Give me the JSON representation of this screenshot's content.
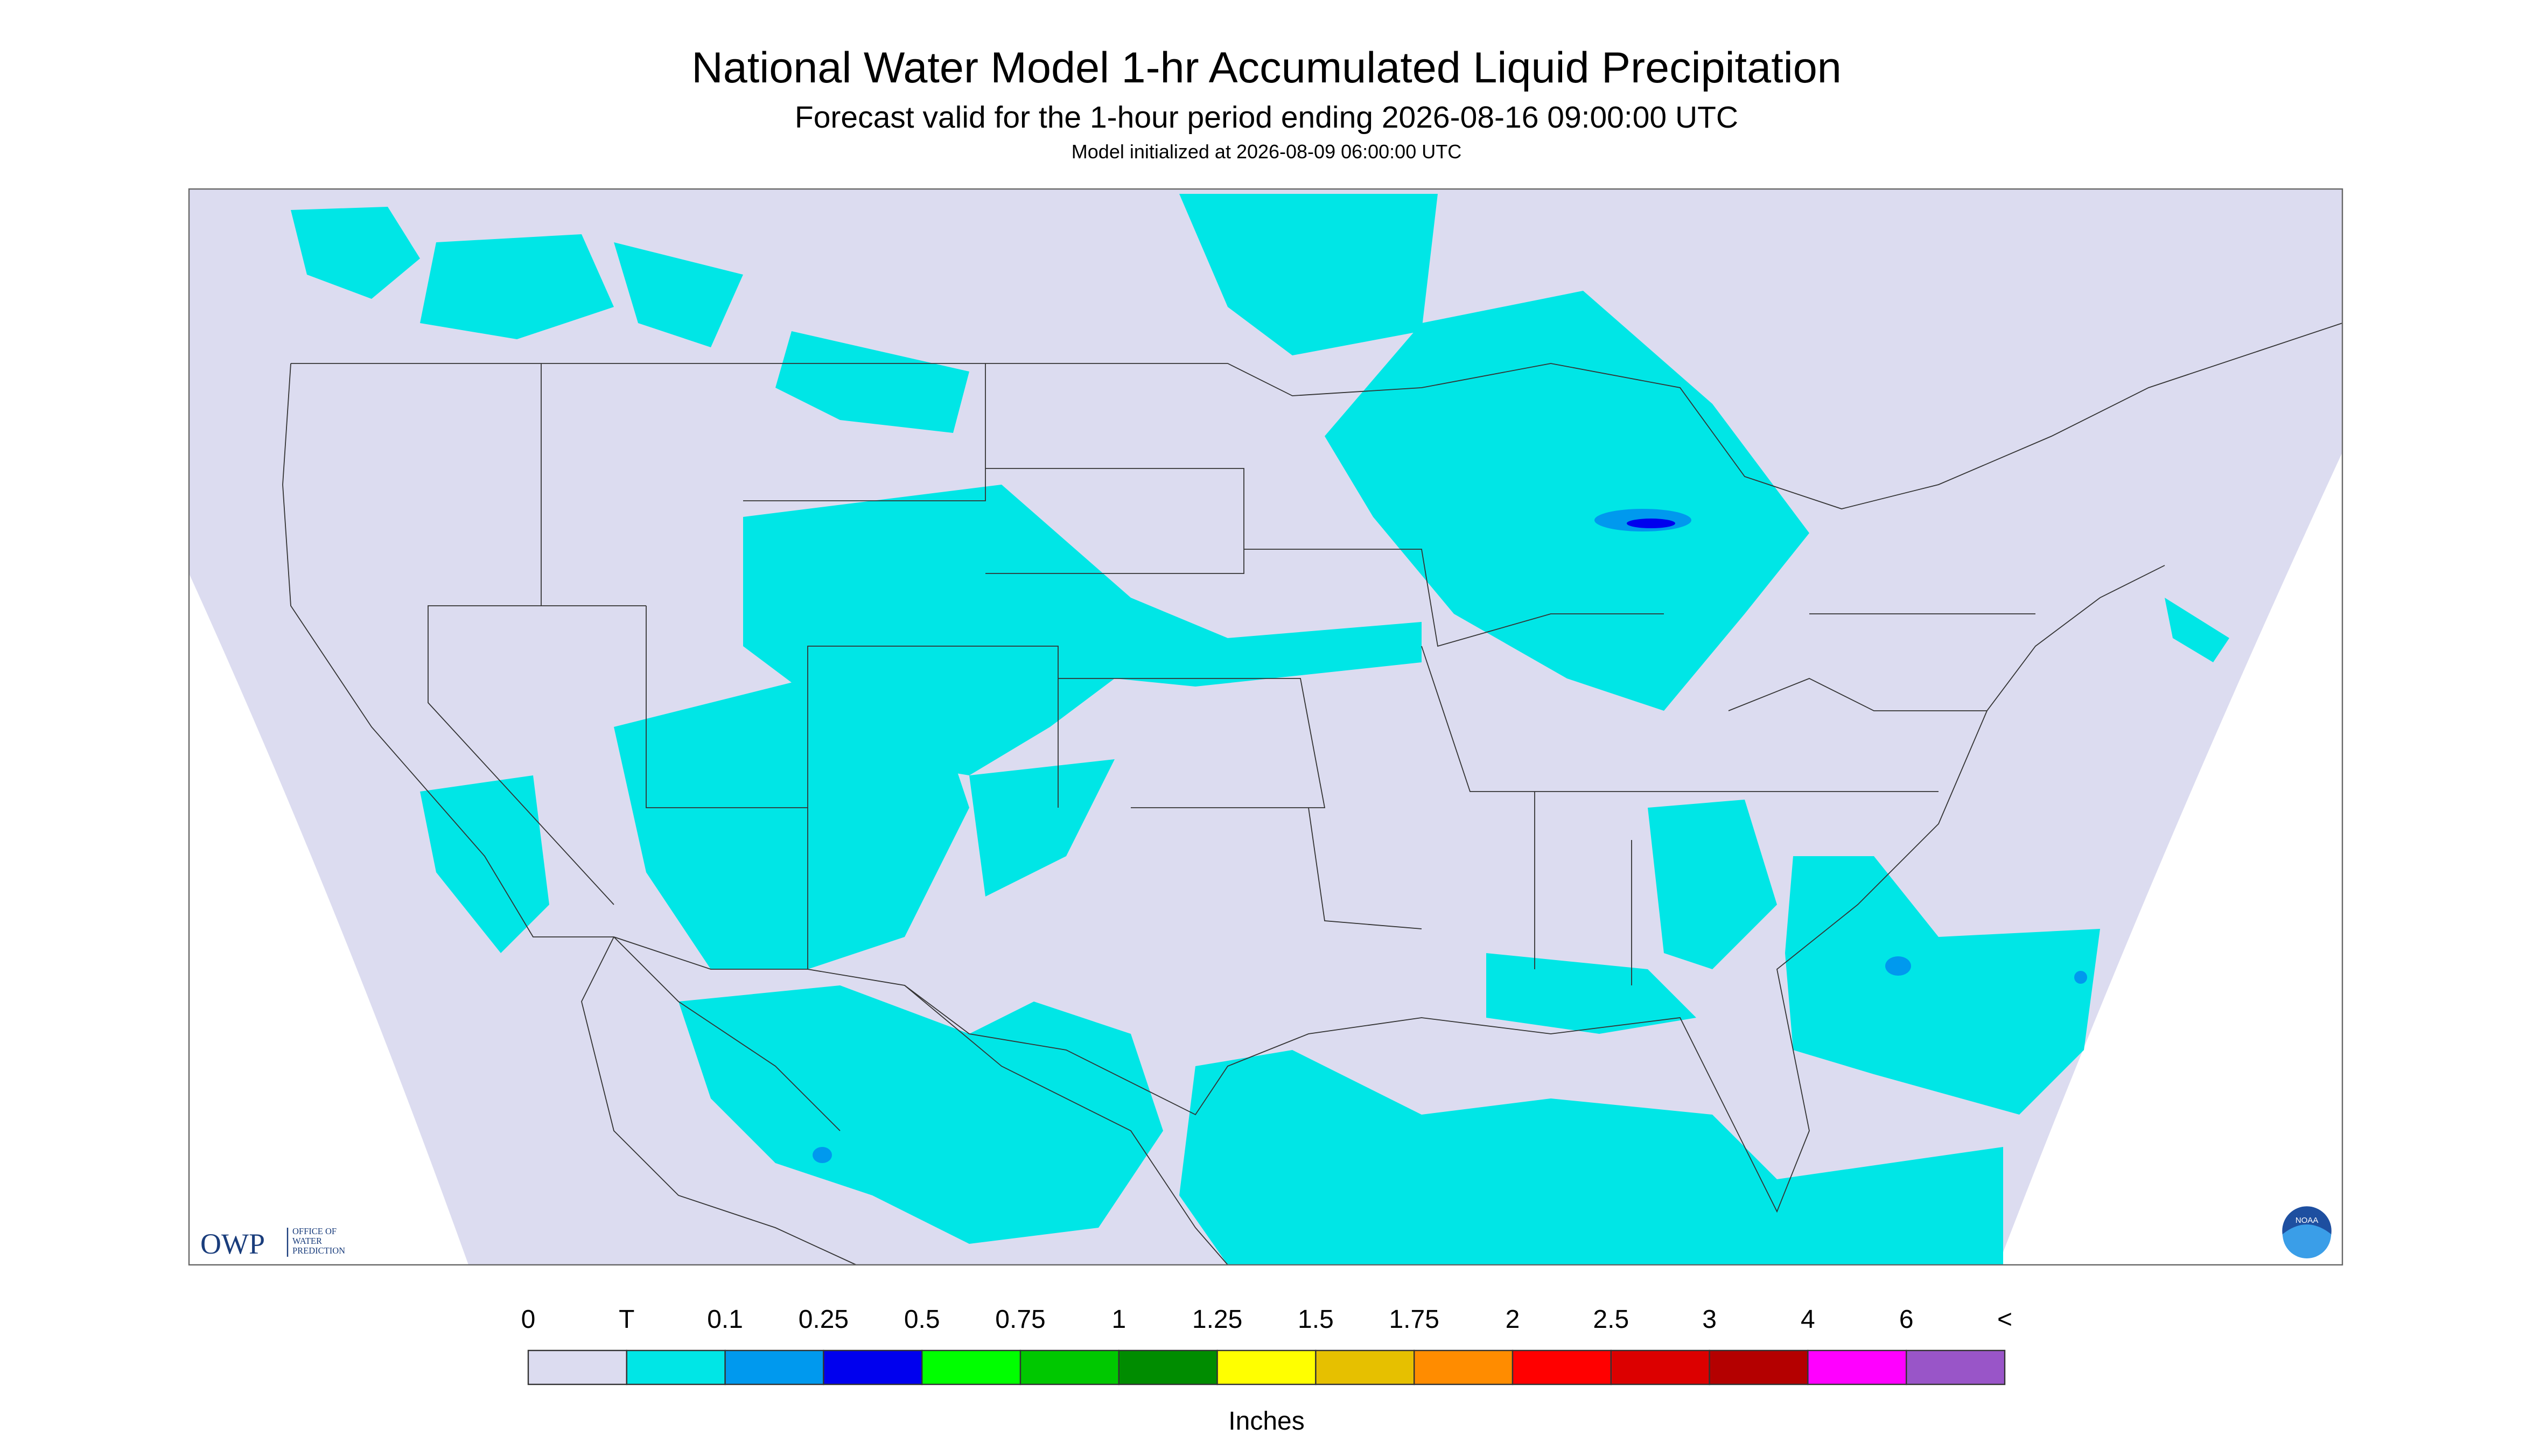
{
  "header": {
    "title": "National Water Model 1-hr Accumulated Liquid Precipitation",
    "subtitle": "Forecast valid for the 1-hour period ending 2026-08-16 09:00:00 UTC",
    "note": "Model initialized at 2026-08-09 06:00:00 UTC"
  },
  "logo": {
    "owp": "OWP",
    "owp_text": [
      "OFFICE OF",
      "WATER",
      "PREDICTION"
    ],
    "noaa": "NOAA"
  },
  "legend": {
    "labels": [
      "0",
      "T",
      "0.1",
      "0.25",
      "0.5",
      "0.75",
      "1",
      "1.25",
      "1.5",
      "1.75",
      "2",
      "2.5",
      "3",
      "4",
      "6",
      "<"
    ],
    "colors": [
      "#dcdcf0",
      "#00e6e6",
      "#0099ee",
      "#0000ee",
      "#00ff00",
      "#00c800",
      "#008c00",
      "#ffff00",
      "#e6c000",
      "#ff8c00",
      "#ff0000",
      "#dc0000",
      "#b40000",
      "#ff00ff",
      "#9955c8"
    ],
    "units": "Inches"
  }
}
